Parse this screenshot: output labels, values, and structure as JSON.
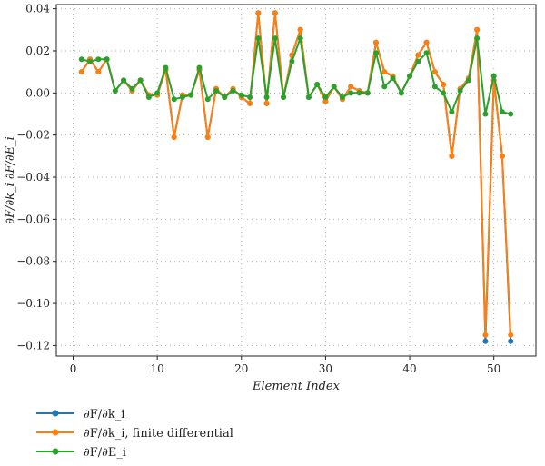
{
  "chart_data": {
    "type": "line",
    "xlabel": "Element Index",
    "ylabel": "∂F/∂k_i ∂F/∂E_i",
    "xlim": [
      -2,
      55
    ],
    "ylim": [
      -0.125,
      0.042
    ],
    "xticks": [
      0,
      10,
      20,
      30,
      40,
      50
    ],
    "yticks": [
      0.04,
      0.02,
      0.0,
      -0.02,
      -0.04,
      -0.06,
      -0.08,
      -0.1,
      -0.12
    ],
    "ytick_labels": [
      "0.04",
      "0.02",
      "0.00",
      "−0.02",
      "−0.04",
      "−0.06",
      "−0.08",
      "−0.10",
      "−0.12"
    ],
    "grid": true,
    "legend_position": "below",
    "x": [
      1,
      2,
      3,
      4,
      5,
      6,
      7,
      8,
      9,
      10,
      11,
      12,
      13,
      14,
      15,
      16,
      17,
      18,
      19,
      20,
      21,
      22,
      23,
      24,
      25,
      26,
      27,
      28,
      29,
      30,
      31,
      32,
      33,
      34,
      35,
      36,
      37,
      38,
      39,
      40,
      41,
      42,
      43,
      44,
      45,
      46,
      47,
      48,
      49,
      50,
      51,
      52
    ],
    "series": [
      {
        "name": "∂F/∂k_i",
        "color": "#1f77b4",
        "values": [
          0.01,
          0.016,
          0.01,
          0.016,
          0.001,
          0.006,
          0.001,
          0.006,
          -0.001,
          -0.001,
          0.011,
          -0.021,
          -0.001,
          -0.001,
          0.011,
          -0.021,
          0.002,
          -0.002,
          0.002,
          -0.002,
          -0.005,
          0.038,
          -0.005,
          0.038,
          -0.002,
          0.018,
          0.03,
          -0.002,
          0.004,
          -0.004,
          0.003,
          -0.003,
          0.003,
          0.001,
          0.0,
          0.024,
          0.01,
          0.008,
          0.0,
          0.008,
          0.018,
          0.024,
          0.01,
          0.004,
          -0.03,
          0.002,
          0.007,
          0.03,
          -0.118,
          0.006,
          -0.03,
          -0.118
        ]
      },
      {
        "name": "∂F/∂k_i, finite differential",
        "color": "#ff7f0e",
        "values": [
          0.01,
          0.016,
          0.01,
          0.016,
          0.001,
          0.006,
          0.001,
          0.006,
          -0.001,
          -0.001,
          0.011,
          -0.021,
          -0.001,
          -0.001,
          0.011,
          -0.021,
          0.002,
          -0.002,
          0.002,
          -0.002,
          -0.005,
          0.038,
          -0.005,
          0.038,
          -0.002,
          0.018,
          0.03,
          -0.002,
          0.004,
          -0.004,
          0.003,
          -0.003,
          0.003,
          0.001,
          0.0,
          0.024,
          0.01,
          0.008,
          0.0,
          0.008,
          0.018,
          0.024,
          0.01,
          0.004,
          -0.03,
          0.002,
          0.007,
          0.03,
          -0.115,
          0.006,
          -0.03,
          -0.115
        ]
      },
      {
        "name": "∂F/∂E_i",
        "color": "#2ca02c",
        "values": [
          0.016,
          0.015,
          0.016,
          0.016,
          0.001,
          0.006,
          0.002,
          0.006,
          -0.002,
          0.0,
          0.012,
          -0.003,
          -0.002,
          -0.001,
          0.012,
          -0.003,
          0.001,
          -0.002,
          0.001,
          -0.001,
          -0.002,
          0.026,
          -0.002,
          0.026,
          -0.002,
          0.015,
          0.026,
          -0.002,
          0.004,
          -0.002,
          0.003,
          -0.002,
          0.0,
          0.0,
          0.0,
          0.019,
          0.003,
          0.007,
          0.0,
          0.008,
          0.015,
          0.019,
          0.003,
          0.0,
          -0.009,
          0.001,
          0.006,
          0.026,
          -0.01,
          0.008,
          -0.009,
          -0.01
        ]
      }
    ]
  }
}
